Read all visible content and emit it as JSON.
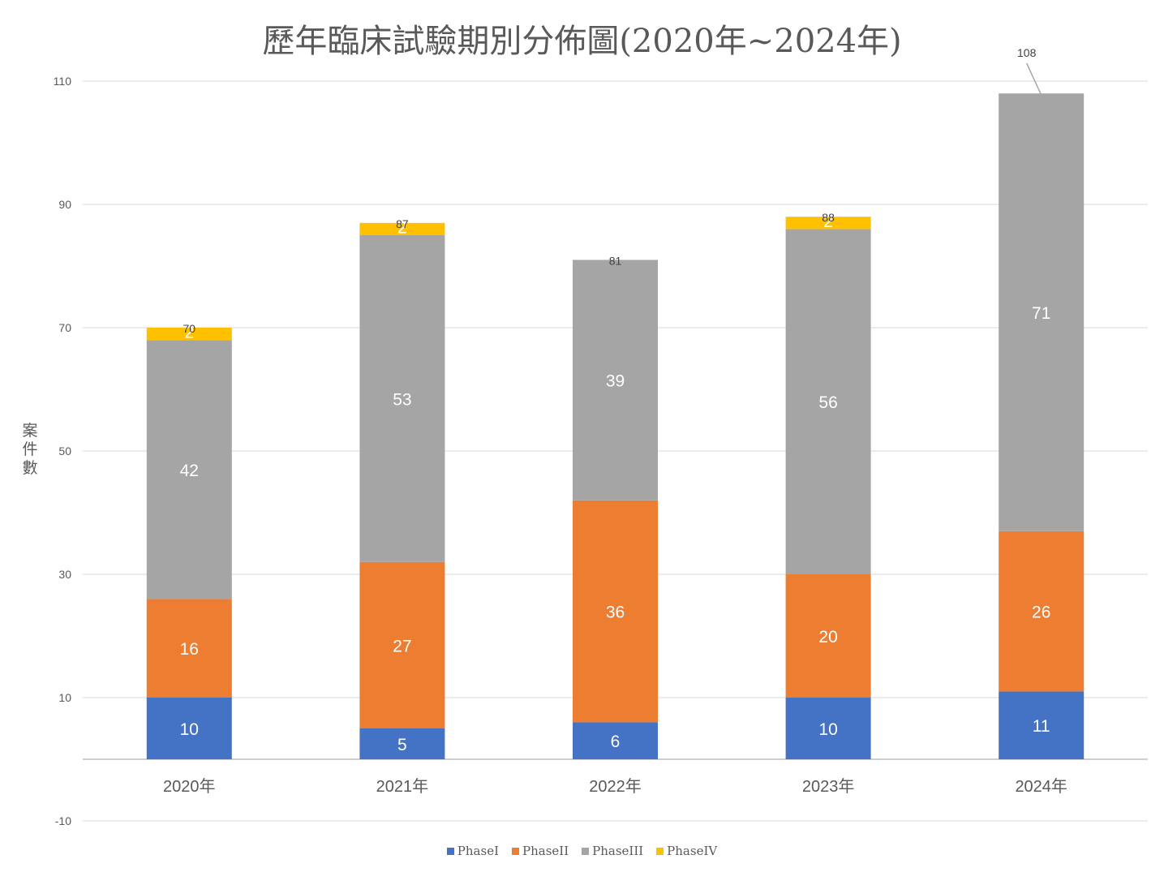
{
  "chart_data": {
    "type": "bar",
    "stacked": true,
    "title": "歷年臨床試驗期別分佈圖(2020年~2024年)",
    "ylabel": "案件數",
    "xlabel": "",
    "ylim": [
      -10,
      110
    ],
    "yticks": [
      -10,
      10,
      30,
      50,
      70,
      90,
      110
    ],
    "grid": true,
    "legend_position": "bottom",
    "categories": [
      "2020年",
      "2021年",
      "2022年",
      "2023年",
      "2024年"
    ],
    "series": [
      {
        "name": "PhaseI",
        "color": "#4472C4",
        "values": [
          10,
          5,
          6,
          10,
          11
        ]
      },
      {
        "name": "PhaseII",
        "color": "#ED7D31",
        "values": [
          16,
          27,
          36,
          20,
          26
        ]
      },
      {
        "name": "PhaseIII",
        "color": "#A5A5A5",
        "values": [
          42,
          53,
          39,
          56,
          71
        ]
      },
      {
        "name": "PhaseIV",
        "color": "#FFC000",
        "values": [
          2,
          2,
          0,
          2,
          0
        ]
      }
    ],
    "totals": [
      70,
      87,
      81,
      88,
      108
    ]
  }
}
